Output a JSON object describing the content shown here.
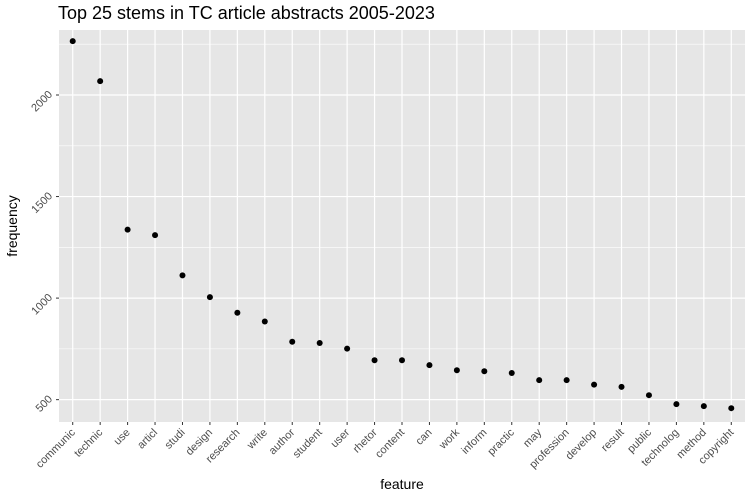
{
  "chart_data": {
    "type": "scatter",
    "title": "Top 25 stems in TC article abstracts 2005-2023",
    "xlabel": "feature",
    "ylabel": "frequency",
    "categories": [
      "communic",
      "technic",
      "use",
      "articl",
      "studi",
      "design",
      "research",
      "write",
      "author",
      "student",
      "user",
      "rhetor",
      "content",
      "can",
      "work",
      "inform",
      "practic",
      "may",
      "profession",
      "develop",
      "result",
      "public",
      "technolog",
      "method",
      "copyright"
    ],
    "values": [
      2265,
      2068,
      1337,
      1310,
      1112,
      1005,
      928,
      885,
      785,
      779,
      751,
      694,
      694,
      670,
      645,
      640,
      631,
      596,
      596,
      574,
      563,
      522,
      478,
      468,
      458
    ],
    "yticks": [
      500,
      1000,
      1500,
      2000
    ],
    "ylim": [
      390,
      2320
    ],
    "grid": true,
    "legend": "none",
    "colors": {
      "panel": "#e6e6e6",
      "grid": "#ffffff",
      "point": "#000000",
      "tick": "#4d4d4d"
    }
  }
}
